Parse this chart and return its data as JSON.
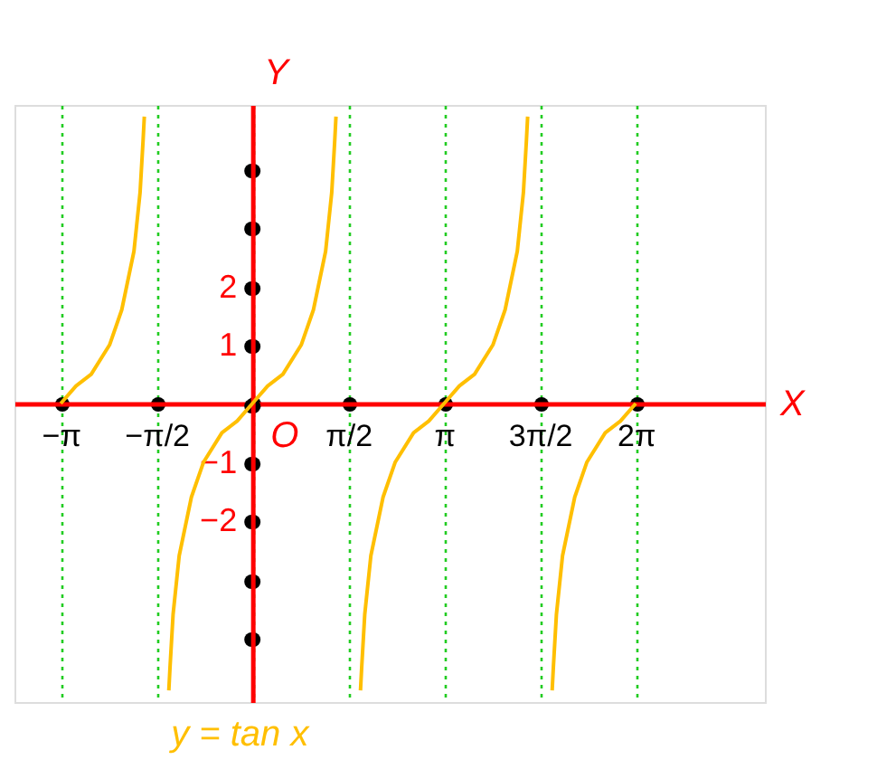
{
  "chart_data": {
    "type": "line",
    "xlabel": "X",
    "ylabel": "Y",
    "xlim": [
      -3.9,
      8.4
    ],
    "ylim": [
      -5.1,
      5.1
    ],
    "xticks": [
      {
        "value": -3.1416,
        "label": "−π"
      },
      {
        "value": -1.5708,
        "label": "−π/2"
      },
      {
        "value": 0,
        "label": null
      },
      {
        "value": 1.5708,
        "label": "π/2"
      },
      {
        "value": 3.1416,
        "label": "π"
      },
      {
        "value": 4.7124,
        "label": "3π/2"
      },
      {
        "value": 6.2832,
        "label": "2π"
      }
    ],
    "yticks": [
      {
        "value": -4,
        "label": null
      },
      {
        "value": -3,
        "label": null
      },
      {
        "value": -2,
        "label": "−2"
      },
      {
        "value": -1,
        "label": "−1"
      },
      {
        "value": 0,
        "label": null
      },
      1,
      2,
      {
        "value": 3,
        "label": null
      },
      {
        "value": 4,
        "label": null
      }
    ],
    "grid": "x",
    "line_style": "solid",
    "marker": "none",
    "legend": false,
    "annotations": [
      {
        "text": "O",
        "x": 0,
        "y": 0
      }
    ],
    "series": [
      {
        "name": "y = tan x",
        "color": "#ffbf00",
        "x": [
          -3.1416,
          -2.8916,
          -2.6416,
          -2.3416,
          -2.1416,
          -1.9416,
          -1.8416,
          -1.7916,
          -1.7716
        ],
        "values": [
          0,
          0.3,
          0.5,
          1.0,
          1.6,
          2.6,
          3.6,
          4.5,
          4.9
        ]
      },
      {
        "color": "#ffbf00",
        "x": [
          -1.37,
          -1.35,
          -1.3,
          -1.2,
          -1.0,
          -0.8,
          -0.5,
          -0.25,
          0,
          0.25,
          0.5,
          0.8,
          1.0,
          1.2,
          1.3,
          1.35,
          1.37
        ],
        "values": [
          -4.9,
          -4.5,
          -3.6,
          -2.6,
          -1.6,
          -1.0,
          -0.5,
          -0.3,
          0,
          0.3,
          0.5,
          1.0,
          1.6,
          2.6,
          3.6,
          4.5,
          4.9
        ]
      },
      {
        "color": "#ffbf00",
        "x": [
          1.7716,
          1.7916,
          1.8416,
          1.9416,
          2.1416,
          2.3416,
          2.6416,
          2.8916,
          3.1416,
          3.3916,
          3.6416,
          3.9416,
          4.1416,
          4.3416,
          4.4416,
          4.4916,
          4.5116
        ],
        "values": [
          -4.9,
          -4.5,
          -3.6,
          -2.6,
          -1.6,
          -1.0,
          -0.5,
          -0.3,
          0,
          0.3,
          0.5,
          1.0,
          1.6,
          2.6,
          3.6,
          4.5,
          4.9
        ]
      },
      {
        "color": "#ffbf00",
        "x": [
          4.9132,
          4.9332,
          4.9832,
          5.0832,
          5.2832,
          5.4832,
          5.7832,
          6.0332,
          6.2832
        ],
        "values": [
          -4.9,
          -4.5,
          -3.6,
          -2.6,
          -1.6,
          -1.0,
          -0.5,
          -0.3,
          0
        ]
      }
    ]
  }
}
